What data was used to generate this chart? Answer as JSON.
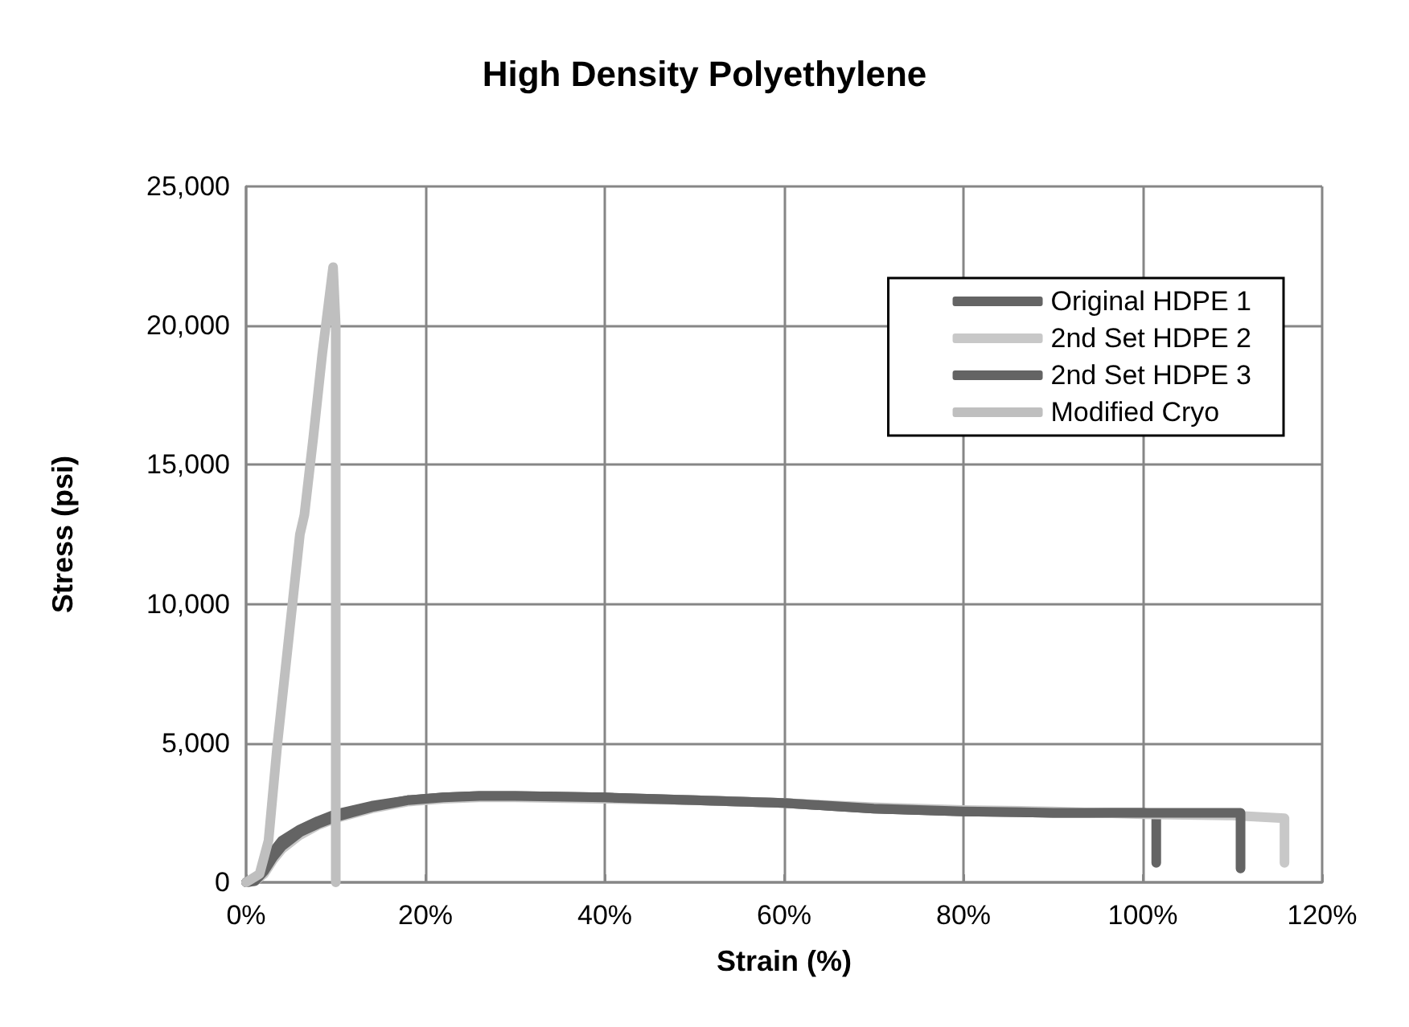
{
  "chart_data": {
    "type": "line",
    "title": "High Density Polyethylene",
    "xlabel": "Strain (%)",
    "ylabel": "Stress (psi)",
    "xlim": [
      0,
      120
    ],
    "xticks": [
      {
        "value": 0,
        "label": "0%"
      },
      {
        "value": 20,
        "label": "20%"
      },
      {
        "value": 40,
        "label": "40%"
      },
      {
        "value": 60,
        "label": "60%"
      },
      {
        "value": 80,
        "label": "80%"
      },
      {
        "value": 100,
        "label": "100%"
      },
      {
        "value": 120,
        "label": "120%"
      }
    ],
    "ylim": [
      0,
      25000
    ],
    "yticks": [
      {
        "value": 0,
        "label": "0"
      },
      {
        "value": 5000,
        "label": "5,000"
      },
      {
        "value": 10000,
        "label": "10,000"
      },
      {
        "value": 15000,
        "label": "15,000"
      },
      {
        "value": 20000,
        "label": "20,000"
      },
      {
        "value": 25000,
        "label": "25,000"
      }
    ],
    "grid": true,
    "legend": "top right",
    "marker": "none",
    "line_style": "solid",
    "series": [
      {
        "name": "Original HDPE 1",
        "color": "#646464",
        "x": [
          0,
          1,
          2,
          3,
          4,
          6,
          8,
          10,
          14,
          18,
          22,
          26,
          30,
          40,
          50,
          60,
          65,
          70,
          75,
          80,
          90,
          100,
          101.5,
          101.5
        ],
        "values": [
          0,
          100,
          500,
          1100,
          1500,
          1900,
          2200,
          2450,
          2750,
          2950,
          3050,
          3100,
          3100,
          3050,
          2950,
          2850,
          2750,
          2650,
          2600,
          2550,
          2500,
          2500,
          2450,
          700
        ]
      },
      {
        "name": "2nd Set HDPE 2",
        "color": "#c8c8c8",
        "x": [
          0,
          1,
          2,
          3,
          4,
          6,
          8,
          10,
          14,
          18,
          22,
          26,
          30,
          40,
          50,
          60,
          70,
          80,
          90,
          100,
          110,
          115.8,
          115.8
        ],
        "values": [
          0,
          50,
          300,
          800,
          1200,
          1700,
          2050,
          2300,
          2650,
          2900,
          3000,
          3050,
          3050,
          3000,
          2950,
          2850,
          2700,
          2600,
          2550,
          2450,
          2400,
          2300,
          700
        ]
      },
      {
        "name": "2nd Set HDPE 3",
        "color": "#646464",
        "x": [
          0,
          1,
          2,
          3,
          4,
          6,
          8,
          10,
          14,
          18,
          22,
          26,
          30,
          40,
          50,
          60,
          65,
          70,
          75,
          80,
          90,
          100,
          110.9,
          110.9
        ],
        "values": [
          0,
          50,
          400,
          900,
          1300,
          1800,
          2100,
          2350,
          2700,
          2950,
          3050,
          3100,
          3100,
          3050,
          2950,
          2850,
          2750,
          2650,
          2600,
          2550,
          2500,
          2500,
          2500,
          500
        ]
      },
      {
        "name": "Modified Cryo",
        "color": "#bfbfbf",
        "x": [
          0,
          1.5,
          2.5,
          3.5,
          5,
          6,
          6.5,
          7.5,
          8.5,
          9.7,
          10,
          10
        ],
        "values": [
          0,
          300,
          1500,
          5000,
          9500,
          12500,
          13200,
          16000,
          19000,
          22100,
          20000,
          0
        ]
      }
    ]
  }
}
